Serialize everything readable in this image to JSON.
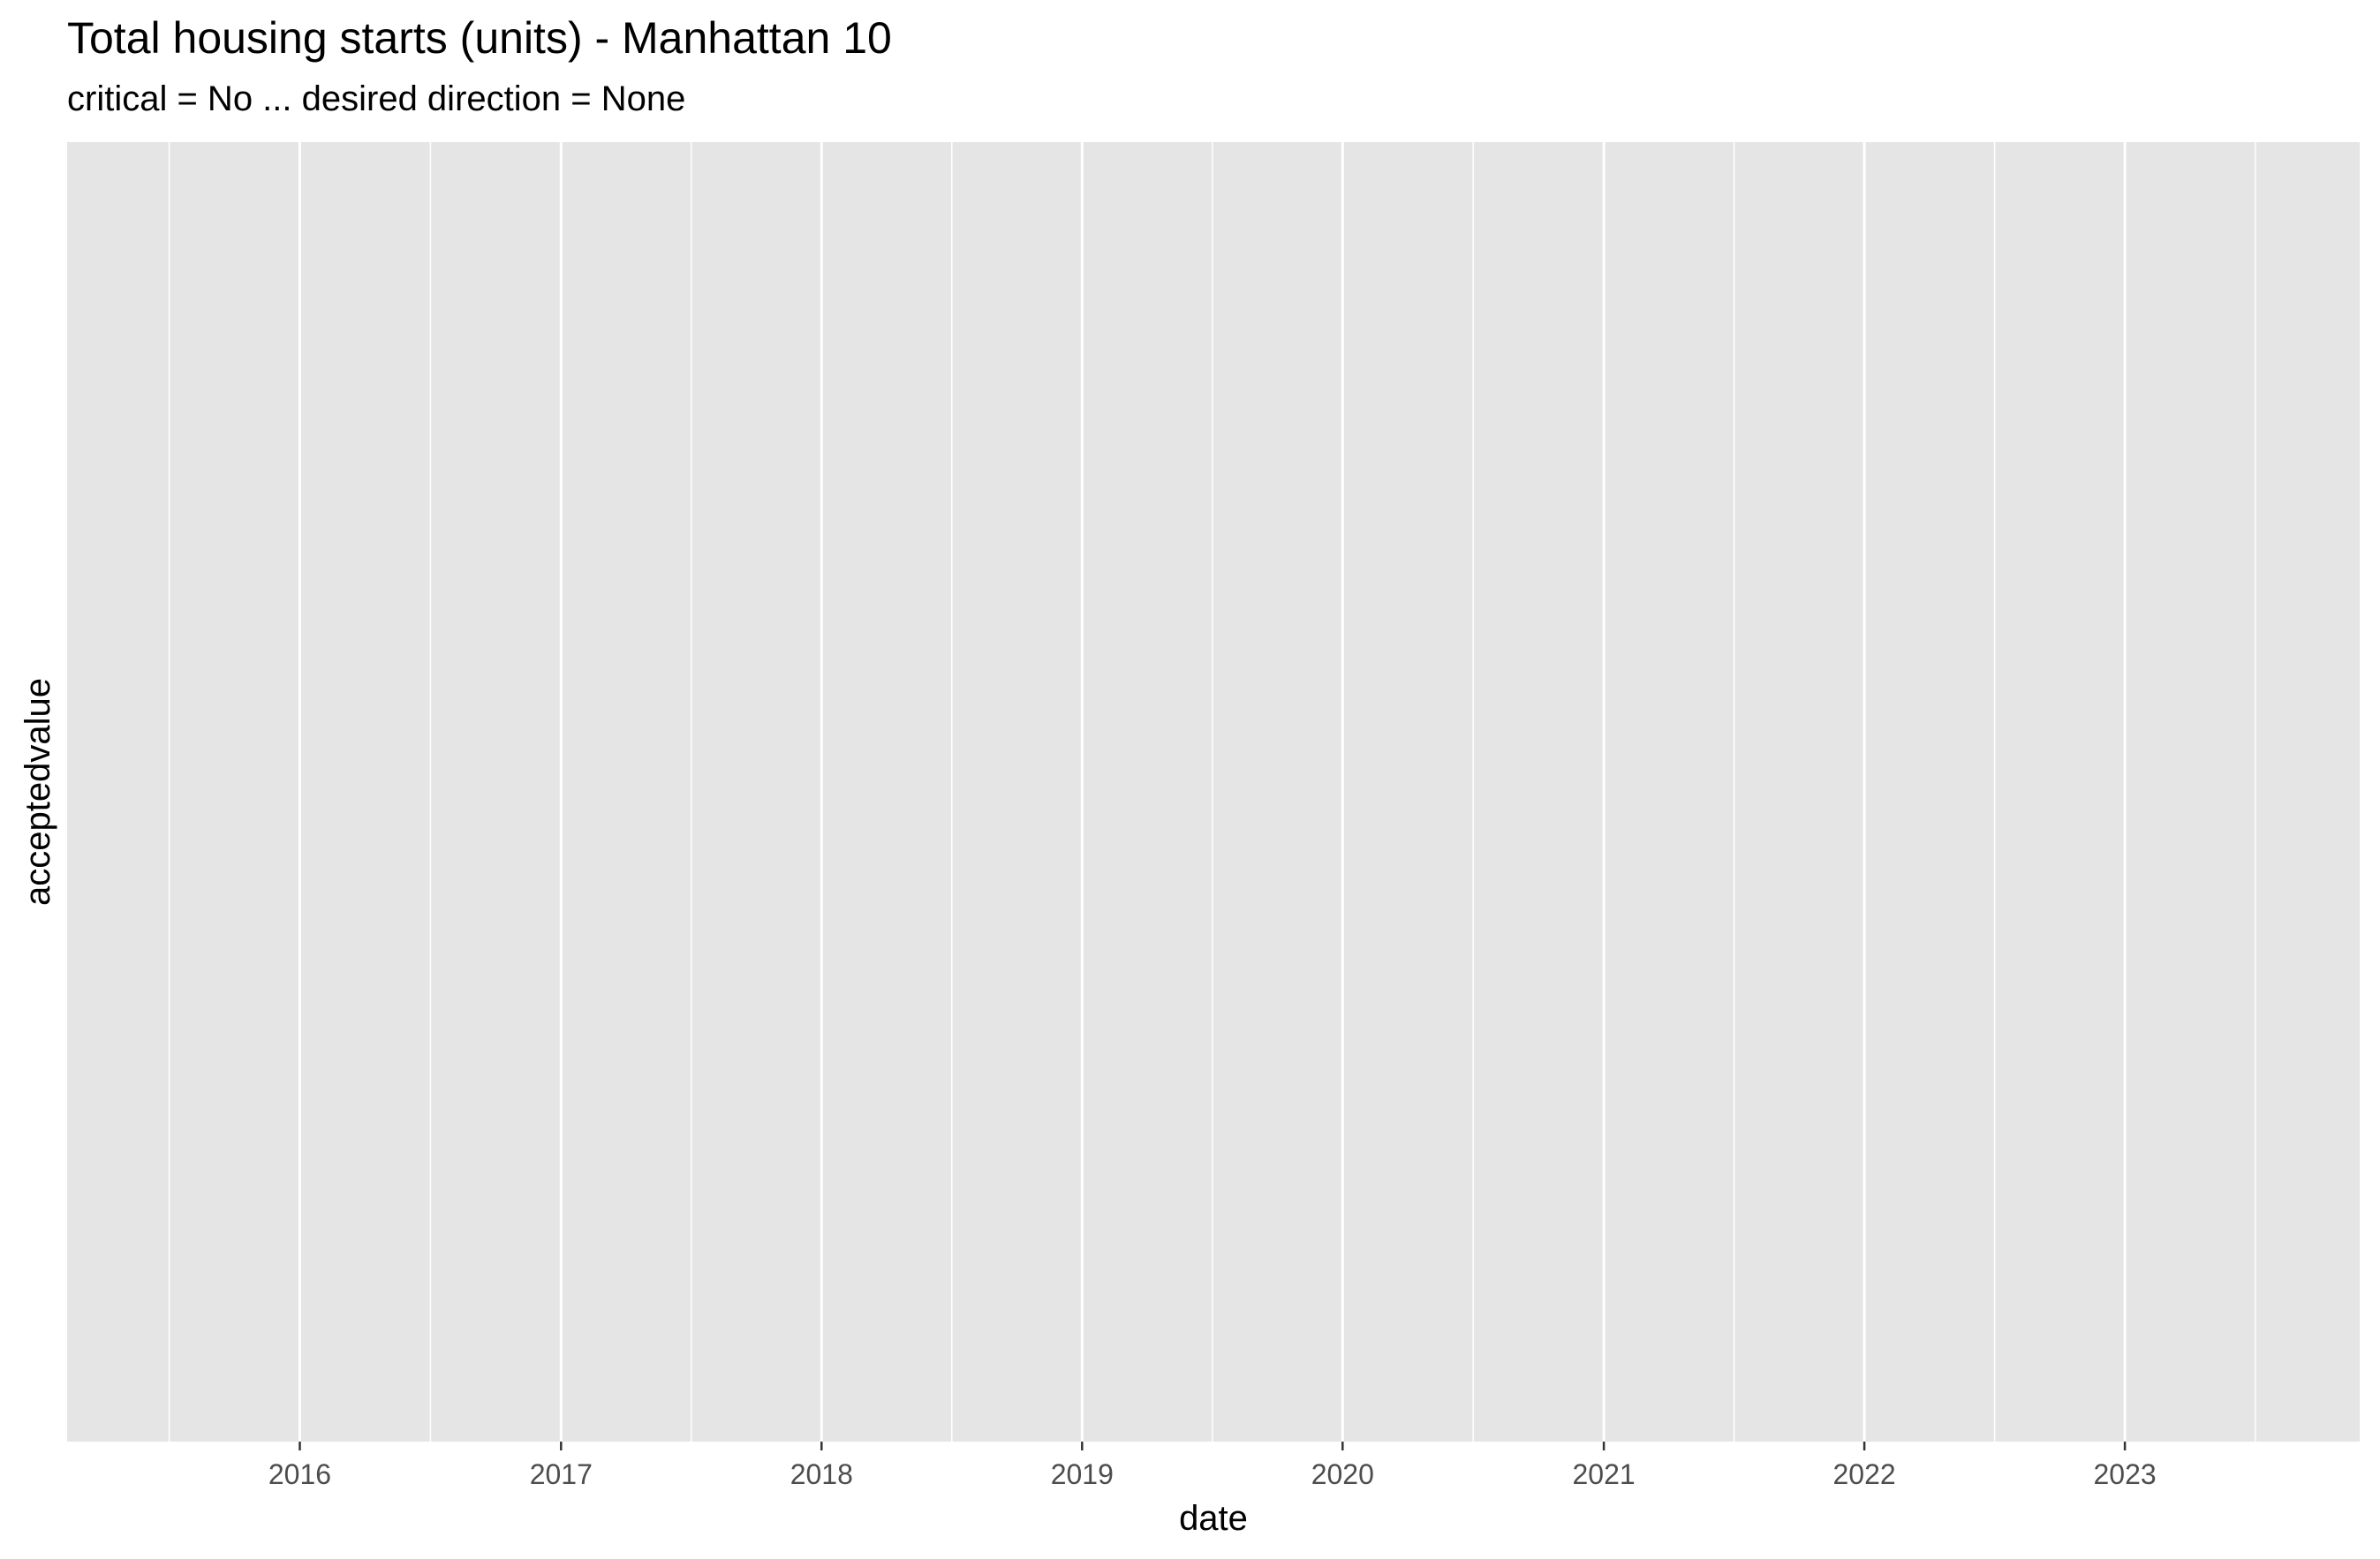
{
  "chart_data": {
    "type": "line",
    "title": "Total housing starts (units) - Manhattan 10",
    "subtitle": "critical = No ... desired direction = None",
    "xlabel": "date",
    "ylabel": "acceptedvalue",
    "x_tick_labels": [
      "2016",
      "2017",
      "2018",
      "2019",
      "2020",
      "2021",
      "2022",
      "2023"
    ],
    "x_ticks": [
      "2016-01-01",
      "2017-01-01",
      "2018-01-01",
      "2019-01-01",
      "2020-01-01",
      "2021-01-01",
      "2022-01-01",
      "2023-01-01"
    ],
    "xlim": [
      "2015-02-09",
      "2023-11-26"
    ],
    "y_tick_labels": [],
    "series": [],
    "grid": true,
    "panel_background": "#e5e5e5",
    "grid_color": "#ffffff"
  }
}
